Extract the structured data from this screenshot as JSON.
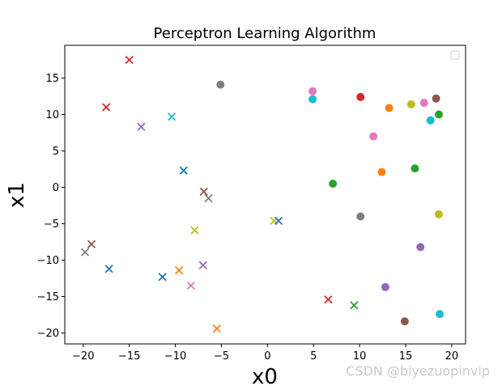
{
  "chart_data": {
    "type": "scatter",
    "title": "Perceptron Learning Algorithm",
    "xlabel": "x0",
    "ylabel": "x1",
    "xlim": [
      -22,
      21.5
    ],
    "ylim": [
      -21.5,
      19.5
    ],
    "xticks": [
      -20,
      -15,
      -10,
      -5,
      0,
      5,
      10,
      15,
      20
    ],
    "yticks": [
      -20,
      -15,
      -10,
      -5,
      0,
      5,
      10,
      15
    ],
    "grid": false,
    "legend": "top-right (empty)",
    "series": [
      {
        "marker": "x",
        "points": [
          {
            "x": -15.0,
            "y": 17.5,
            "color": "#d62728"
          },
          {
            "x": -17.5,
            "y": 11.0,
            "color": "#d62728"
          },
          {
            "x": -13.7,
            "y": 8.3,
            "color": "#9467bd"
          },
          {
            "x": -10.4,
            "y": 9.7,
            "color": "#17becf"
          },
          {
            "x": -9.1,
            "y": 2.3,
            "color": "#1f77b4"
          },
          {
            "x": -6.9,
            "y": -0.6,
            "color": "#8c564b"
          },
          {
            "x": -6.4,
            "y": -1.5,
            "color": "#7f7f7f"
          },
          {
            "x": -7.9,
            "y": -5.9,
            "color": "#bcbd22"
          },
          {
            "x": -19.1,
            "y": -7.8,
            "color": "#8c564b"
          },
          {
            "x": -19.8,
            "y": -8.9,
            "color": "#7f7f7f"
          },
          {
            "x": -17.2,
            "y": -11.2,
            "color": "#1f77b4"
          },
          {
            "x": -9.6,
            "y": -11.4,
            "color": "#ff7f0e"
          },
          {
            "x": -7.0,
            "y": -10.7,
            "color": "#9467bd"
          },
          {
            "x": -11.4,
            "y": -12.3,
            "color": "#1f77b4"
          },
          {
            "x": -8.3,
            "y": -13.5,
            "color": "#e377c2"
          },
          {
            "x": -5.5,
            "y": -19.4,
            "color": "#ff7f0e"
          },
          {
            "x": 0.7,
            "y": -4.6,
            "color": "#bcbd22"
          },
          {
            "x": 1.2,
            "y": -4.6,
            "color": "#1f77b4"
          },
          {
            "x": 6.6,
            "y": -15.4,
            "color": "#d62728"
          },
          {
            "x": 9.4,
            "y": -16.2,
            "color": "#2ca02c"
          }
        ]
      },
      {
        "marker": "o",
        "points": [
          {
            "x": -5.1,
            "y": 14.1,
            "color": "#7f7f7f"
          },
          {
            "x": 4.9,
            "y": 13.2,
            "color": "#e377c2"
          },
          {
            "x": 4.9,
            "y": 12.1,
            "color": "#17becf"
          },
          {
            "x": 10.1,
            "y": 12.4,
            "color": "#d62728"
          },
          {
            "x": 13.2,
            "y": 10.9,
            "color": "#ff7f0e"
          },
          {
            "x": 15.6,
            "y": 11.4,
            "color": "#bcbd22"
          },
          {
            "x": 17.0,
            "y": 11.6,
            "color": "#e377c2"
          },
          {
            "x": 18.3,
            "y": 12.2,
            "color": "#8c564b"
          },
          {
            "x": 18.6,
            "y": 10.0,
            "color": "#2ca02c"
          },
          {
            "x": 17.7,
            "y": 9.2,
            "color": "#17becf"
          },
          {
            "x": 11.5,
            "y": 7.0,
            "color": "#e377c2"
          },
          {
            "x": 16.0,
            "y": 2.6,
            "color": "#2ca02c"
          },
          {
            "x": 12.4,
            "y": 2.1,
            "color": "#ff7f0e"
          },
          {
            "x": 7.1,
            "y": 0.5,
            "color": "#2ca02c"
          },
          {
            "x": 10.1,
            "y": -4.0,
            "color": "#7f7f7f"
          },
          {
            "x": 18.6,
            "y": -3.7,
            "color": "#bcbd22"
          },
          {
            "x": 16.6,
            "y": -8.2,
            "color": "#9467bd"
          },
          {
            "x": 12.8,
            "y": -13.7,
            "color": "#9467bd"
          },
          {
            "x": 18.7,
            "y": -17.4,
            "color": "#17becf"
          },
          {
            "x": 14.9,
            "y": -18.4,
            "color": "#8c564b"
          }
        ]
      }
    ]
  },
  "watermark": "CSDN @biyezuopinvip"
}
